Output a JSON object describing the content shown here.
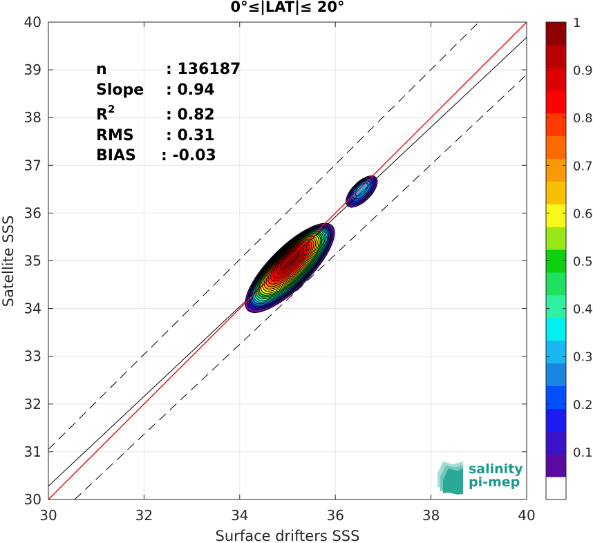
{
  "chart_data": {
    "type": "heatmap",
    "title": "0°≤|LAT|≤ 20°",
    "xlabel": "Surface drifters SSS",
    "ylabel": "Satellite SSS",
    "xlim": [
      30,
      40
    ],
    "ylim": [
      30,
      40
    ],
    "xticks": [
      "30",
      "32",
      "34",
      "36",
      "38",
      "40"
    ],
    "yticks": [
      "30",
      "31",
      "32",
      "33",
      "34",
      "35",
      "36",
      "37",
      "38",
      "39",
      "40"
    ],
    "grid": true,
    "lines": {
      "one_to_one": {
        "color": "#ff0000",
        "from": [
          30,
          30
        ],
        "to": [
          40,
          40
        ]
      },
      "regression": {
        "color": "#000000",
        "slope": 0.94,
        "from": [
          30,
          30.28
        ],
        "to": [
          40,
          39.68
        ]
      },
      "upper_bound": {
        "color": "#000000",
        "dashed": true,
        "from": [
          30,
          31.05
        ],
        "to": [
          39.0,
          40
        ]
      },
      "lower_bound": {
        "color": "#000000",
        "dashed": true,
        "from": [
          30.55,
          30
        ],
        "to": [
          40,
          38.9
        ]
      }
    },
    "density_blobs": [
      {
        "cx": 35.05,
        "cy": 34.85,
        "rx_along": 1.25,
        "r_across": 0.43,
        "peak": 1.0
      },
      {
        "cx": 36.55,
        "cy": 36.45,
        "rx_along": 0.42,
        "r_across": 0.2,
        "peak": 0.32
      }
    ],
    "colorbar": {
      "range": [
        0,
        1
      ],
      "ticks": [
        "0.1",
        "0.2",
        "0.3",
        "0.4",
        "0.5",
        "0.6",
        "0.7",
        "0.8",
        "0.9",
        "1"
      ],
      "colors": [
        "#ffffff",
        "#5a0a9e",
        "#3a12c8",
        "#1c1cf0",
        "#0050ff",
        "#1b86e0",
        "#19b7f0",
        "#00f0f0",
        "#2ef0a0",
        "#20e060",
        "#0fd010",
        "#98e818",
        "#f8f81a",
        "#f8c000",
        "#f89a08",
        "#ff6a00",
        "#ff3a00",
        "#ff0000",
        "#dd0000",
        "#b80000",
        "#8e0000"
      ]
    },
    "stats": [
      {
        "label": "n",
        "value": ": 136187"
      },
      {
        "label": "Slope",
        "value": ": 0.94"
      },
      {
        "label": "R",
        "sup": "2",
        "value": ": 0.82"
      },
      {
        "label": "RMS",
        "value": ": 0.31"
      },
      {
        "label": "BIAS",
        "value": ": -0.03"
      }
    ]
  },
  "logo": {
    "line1": "salinity",
    "line2": "pi-mep"
  }
}
